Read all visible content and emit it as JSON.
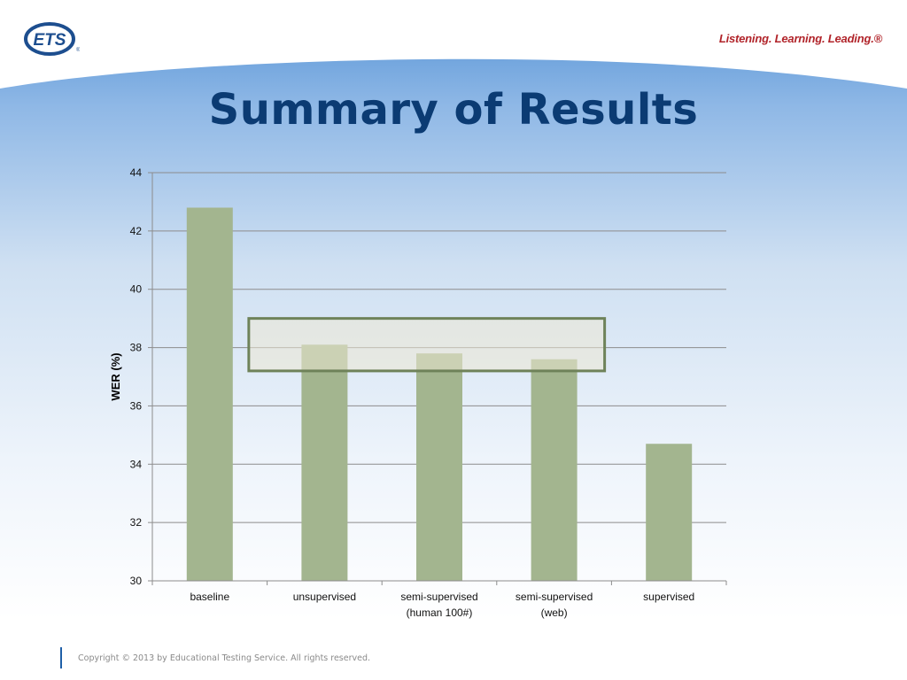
{
  "brand": {
    "logo_text": "ETS",
    "tagline": "Listening. Learning. Leading.®"
  },
  "slide": {
    "title": "Summary of Results",
    "footer": "Copyright © 2013 by Educational Testing Service. All rights reserved."
  },
  "colors": {
    "bar": "#a3b58f",
    "title": "#0b3b73",
    "highlight_fill": "#ece7d3",
    "highlight_stroke": "#6e8259",
    "tagline": "#b1242a"
  },
  "chart_data": {
    "type": "bar",
    "categories": [
      "baseline",
      "unsupervised",
      "semi-supervised (human 100#)",
      "semi-supervised (web)",
      "supervised"
    ],
    "category_lines": [
      [
        "baseline"
      ],
      [
        "unsupervised"
      ],
      [
        "semi-supervised",
        "(human 100#)"
      ],
      [
        "semi-supervised",
        "(web)"
      ],
      [
        "supervised"
      ]
    ],
    "values": [
      42.8,
      38.1,
      37.8,
      37.6,
      34.7
    ],
    "ylabel": "WER (%)",
    "xlabel": "",
    "ylim": [
      30,
      44
    ],
    "yticks": [
      30,
      32,
      34,
      36,
      38,
      40,
      42,
      44
    ],
    "grid": true,
    "annotations": [
      {
        "type": "highlight-box",
        "categories": [
          "unsupervised",
          "semi-supervised (human 100#)",
          "semi-supervised (web)"
        ],
        "y_range": [
          37.2,
          39.0
        ]
      }
    ]
  }
}
